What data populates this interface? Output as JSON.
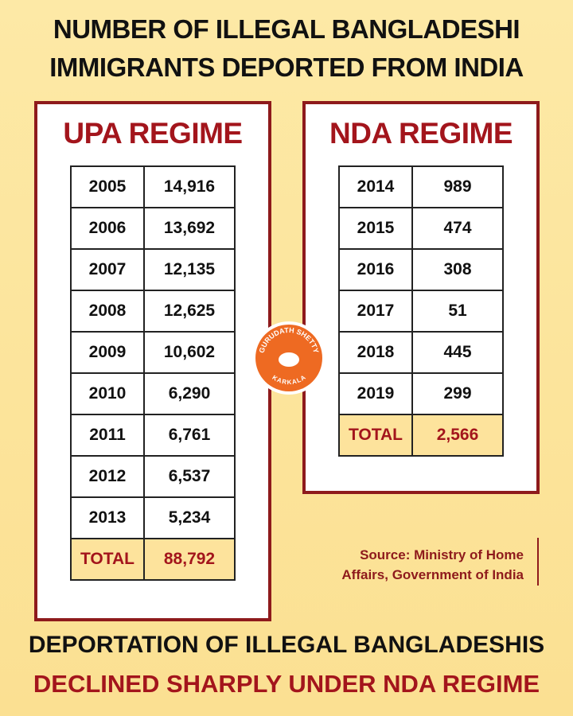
{
  "title": [
    "NUMBER OF ILLEGAL BANGLADESHI",
    "IMMIGRANTS DEPORTED FROM INDIA"
  ],
  "panels": [
    {
      "heading": "UPA REGIME",
      "rows": [
        [
          "2005",
          "14,916"
        ],
        [
          "2006",
          "13,692"
        ],
        [
          "2007",
          "12,135"
        ],
        [
          "2008",
          "12,625"
        ],
        [
          "2009",
          "10,602"
        ],
        [
          "2010",
          "6,290"
        ],
        [
          "2011",
          "6,761"
        ],
        [
          "2012",
          "6,537"
        ],
        [
          "2013",
          "5,234"
        ]
      ],
      "total": [
        "TOTAL",
        "88,792"
      ]
    },
    {
      "heading": "NDA REGIME",
      "rows": [
        [
          "2014",
          "989"
        ],
        [
          "2015",
          "474"
        ],
        [
          "2016",
          "308"
        ],
        [
          "2017",
          "51"
        ],
        [
          "2018",
          "445"
        ],
        [
          "2019",
          "299"
        ]
      ],
      "total": [
        "TOTAL",
        "2,566"
      ]
    }
  ],
  "logo": {
    "top": "GURUDATH SHETTY",
    "bottom": "KARKALA"
  },
  "source": [
    "Source: Ministry of Home",
    "Affairs, Government of India"
  ],
  "footer": [
    "DEPORTATION OF ILLEGAL BANGLADESHIS",
    "DECLINED SHARPLY UNDER NDA REGIME"
  ]
}
